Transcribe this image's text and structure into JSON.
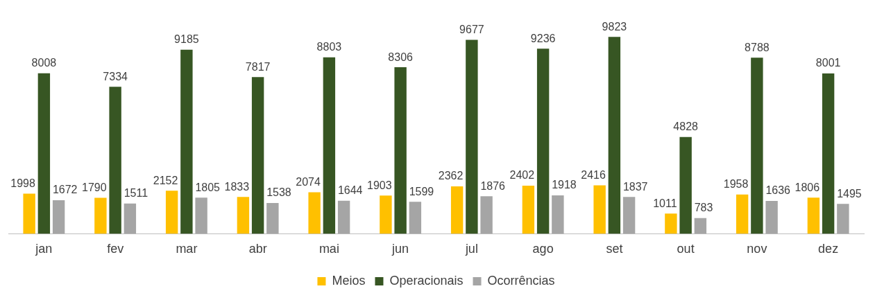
{
  "chart_data": {
    "type": "bar",
    "categories": [
      "jan",
      "fev",
      "mar",
      "abr",
      "mai",
      "jun",
      "jul",
      "ago",
      "set",
      "out",
      "nov",
      "dez"
    ],
    "series": [
      {
        "name": "Meios",
        "color": "#ffc000",
        "values": [
          1998,
          1790,
          2152,
          1833,
          2074,
          1903,
          2362,
          2402,
          2416,
          1011,
          1958,
          1806
        ]
      },
      {
        "name": "Operacionais",
        "color": "#375623",
        "values": [
          8008,
          7334,
          9185,
          7817,
          8803,
          8306,
          9677,
          9236,
          9823,
          4828,
          8788,
          8001
        ]
      },
      {
        "name": "Ocorrências",
        "color": "#a5a5a5",
        "values": [
          1672,
          1511,
          1805,
          1538,
          1644,
          1599,
          1876,
          1918,
          1837,
          783,
          1636,
          1495
        ]
      }
    ],
    "data_labels": true,
    "legend": "bottom",
    "grid": false
  }
}
